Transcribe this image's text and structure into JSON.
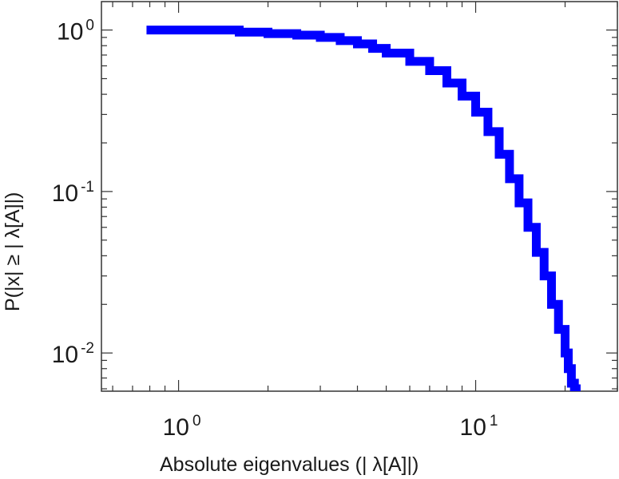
{
  "chart_data": {
    "type": "line",
    "xscale": "log",
    "yscale": "log",
    "xlim": [
      0.55,
      30
    ],
    "ylim": [
      0.0058,
      1.5
    ],
    "xlabel": "Absolute eigenvalues (|     λ[A]|)",
    "ylabel": "P(|x|  ≥ | λ[A]|)",
    "x_ticks": [
      {
        "value": 1,
        "base": "10",
        "exp": "0"
      },
      {
        "value": 10,
        "base": "10",
        "exp": "1"
      }
    ],
    "y_ticks": [
      {
        "value": 1,
        "base": "10",
        "exp": "0"
      },
      {
        "value": 0.1,
        "base": "10",
        "exp": "-1"
      },
      {
        "value": 0.01,
        "base": "10",
        "exp": "-2"
      }
    ],
    "grid": false,
    "legend": "none",
    "series": [
      {
        "color": "#0000ff",
        "x": [
          0.78,
          1.0,
          1.4,
          1.6,
          2.0,
          2.5,
          3.0,
          3.5,
          4.0,
          4.5,
          5.0,
          6.0,
          7.0,
          8.0,
          9.0,
          10.0,
          11.0,
          12.0,
          13.0,
          14.0,
          15.0,
          16.0,
          17.0,
          18.0,
          19.0,
          20.0,
          20.5,
          21.0,
          21.5,
          21.8
        ],
        "y": [
          1.0,
          1.0,
          1.0,
          0.97,
          0.95,
          0.93,
          0.9,
          0.86,
          0.82,
          0.77,
          0.72,
          0.64,
          0.56,
          0.47,
          0.39,
          0.31,
          0.235,
          0.17,
          0.12,
          0.085,
          0.06,
          0.042,
          0.03,
          0.02,
          0.014,
          0.01,
          0.008,
          0.0065,
          0.006,
          0.0055
        ]
      }
    ]
  }
}
